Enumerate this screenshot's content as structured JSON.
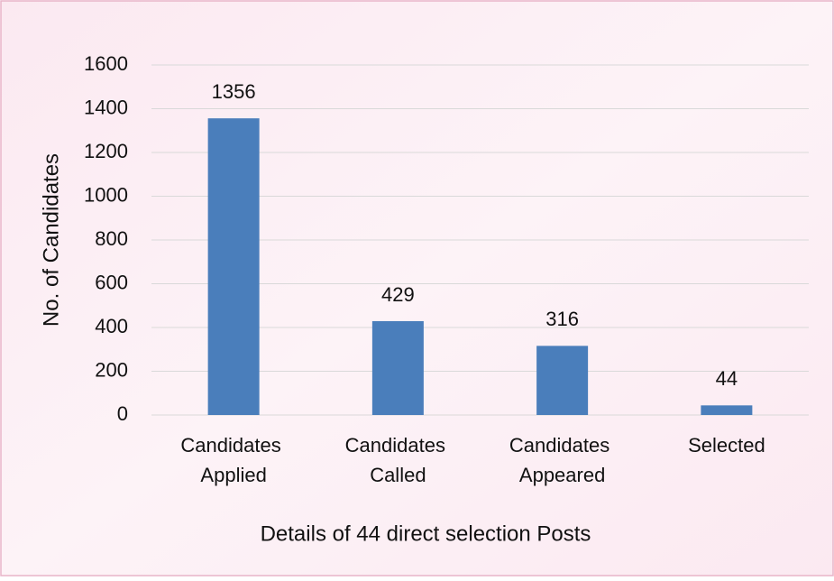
{
  "chart_data": {
    "type": "bar",
    "categories": [
      "Candidates Applied",
      "Candidates Called",
      "Candidates Appeared",
      "Selected"
    ],
    "values": [
      1356,
      429,
      316,
      44
    ],
    "color": "#4a7ebb",
    "xlabel": "Details of 44 direct selection Posts",
    "ylabel": "No. of Candidates",
    "ylim": [
      0,
      1600
    ],
    "yticks": [
      0,
      200,
      400,
      600,
      800,
      1000,
      1200,
      1400,
      1600
    ],
    "grid": true,
    "data_labels": true
  }
}
